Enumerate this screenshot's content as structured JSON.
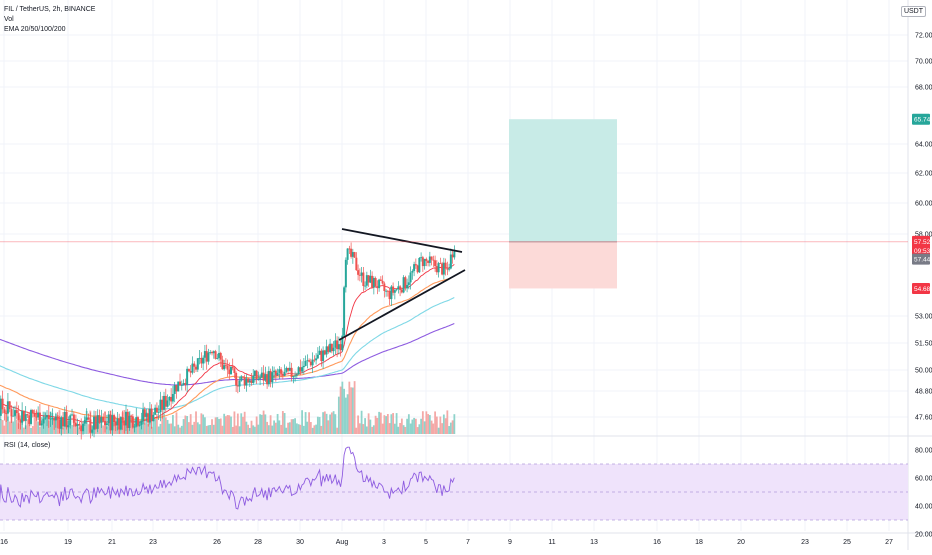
{
  "legend": {
    "symbol_line": "FIL / TetherUS, 2h, BINANCE",
    "vol_label": "Vol",
    "ema_label": "EMA 20/50/100/200"
  },
  "rsi_legend": "RSI (14, close)",
  "currency": "USDT",
  "colors": {
    "up": "#26a69a",
    "down": "#ef5350",
    "vol_up": "#8fd3cb",
    "vol_down": "#f4a9a7",
    "ema20": "#f23645",
    "ema50": "#ff9a5c",
    "ema100": "#7fd8e6",
    "ema200": "#8e5ce0",
    "rsi_line": "#8e5ce0",
    "rsi_band": "#efe3fb",
    "target": "#c8ebe7",
    "stop": "#fcdad8",
    "grid": "#f0f3fa",
    "price_line": "#f23645"
  },
  "chart_data": {
    "type": "candlestick",
    "symbol": "FIL / TetherUS",
    "interval": "2h",
    "exchange": "BINANCE",
    "price_axis": {
      "ticks": [
        47.6,
        48.8,
        50.0,
        51.5,
        53.0,
        58.0,
        60.0,
        62.0,
        64.0,
        68.0,
        70.0,
        72.0
      ],
      "tick_labels": [
        "47.60",
        "48.80",
        "50.00",
        "51.50",
        "53.00",
        "58.00",
        "60.00",
        "62.00",
        "64.00",
        "68.00",
        "70.00",
        "72.00"
      ]
    },
    "x_axis": {
      "tick_labels": [
        "16",
        "19",
        "21",
        "23",
        "26",
        "28",
        "30",
        "Aug",
        "3",
        "5",
        "7",
        "9",
        "11",
        "13",
        "16",
        "18",
        "20",
        "23",
        "25",
        "27"
      ]
    },
    "badges": {
      "target": "65.74",
      "current": "57.52",
      "countdown": "09:53",
      "ema_value": "57.44",
      "stop": "54.68"
    },
    "position_tool": {
      "entry": 57.52,
      "target": 65.74,
      "stop": 54.68
    },
    "triangle": {
      "upper": {
        "from": [
          "Jul 31",
          58.3
        ],
        "to": [
          "Aug 6",
          57.1
        ]
      },
      "lower": {
        "from": [
          "Jul 31",
          51.6
        ],
        "to": [
          "Aug 6",
          56.0
        ]
      }
    },
    "rsi": {
      "name": "RSI (14, close)",
      "ticks": [
        20.0,
        40.0,
        60.0,
        80.0
      ],
      "tick_labels": [
        "20.00",
        "40.00",
        "60.00",
        "80.00"
      ],
      "band": [
        30,
        70
      ]
    }
  }
}
